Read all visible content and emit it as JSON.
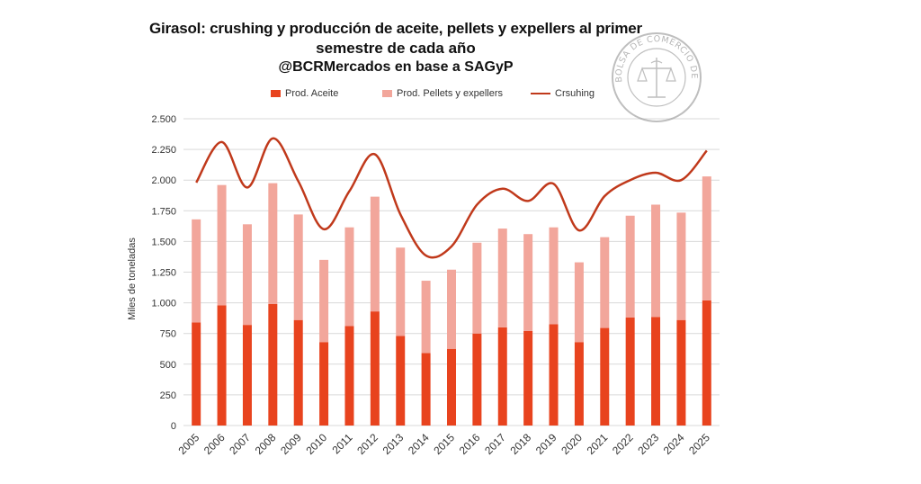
{
  "colors": {
    "aceite": "#e8431e",
    "pellets": "#f2a69b",
    "crushing": "#c0391b",
    "grid": "#d9d9d9",
    "axis_text": "#333333"
  },
  "seal": {
    "text": "BOLSA DE COMERCIO DE ROSARIO"
  },
  "chart_data": {
    "type": "bar",
    "stacked": true,
    "title": "Girasol: crushing y producción de aceite, pellets y expellers al primer",
    "title_line2": "semestre de cada año",
    "subtitle": "@BCRMercados en base a SAGyP",
    "ylabel": "Miles de toneladas",
    "xlabel": "",
    "ylim": [
      0,
      2500
    ],
    "yticks": [
      0,
      250,
      500,
      750,
      1000,
      1250,
      1500,
      1750,
      2000,
      2250,
      2500
    ],
    "ytick_labels": [
      "0",
      "250",
      "500",
      "750",
      "1.000",
      "1.250",
      "1.500",
      "1.750",
      "2.000",
      "2.250",
      "2.500"
    ],
    "grid": true,
    "legend_position": "top",
    "categories": [
      "2005",
      "2006",
      "2007",
      "2008",
      "2009",
      "2010",
      "2011",
      "2012",
      "2013",
      "2014",
      "2015",
      "2016",
      "2017",
      "2018",
      "2019",
      "2020",
      "2021",
      "2022",
      "2023",
      "2024",
      "2025"
    ],
    "series": [
      {
        "name": "Prod. Aceite",
        "kind": "bar",
        "values": [
          840,
          980,
          820,
          990,
          860,
          680,
          810,
          930,
          730,
          590,
          625,
          750,
          800,
          770,
          825,
          680,
          795,
          880,
          885,
          860,
          1020
        ]
      },
      {
        "name": "Prod. Pellets y expellers",
        "kind": "bar",
        "values": [
          840,
          980,
          820,
          985,
          860,
          670,
          805,
          935,
          720,
          590,
          645,
          740,
          805,
          790,
          790,
          650,
          740,
          830,
          915,
          875,
          1010
        ]
      },
      {
        "name": "Crsuhing",
        "kind": "line",
        "values": [
          1980,
          2310,
          1940,
          2340,
          1990,
          1600,
          1910,
          2210,
          1720,
          1385,
          1460,
          1800,
          1930,
          1830,
          1970,
          1590,
          1870,
          2000,
          2060,
          2000,
          2240
        ]
      }
    ]
  }
}
